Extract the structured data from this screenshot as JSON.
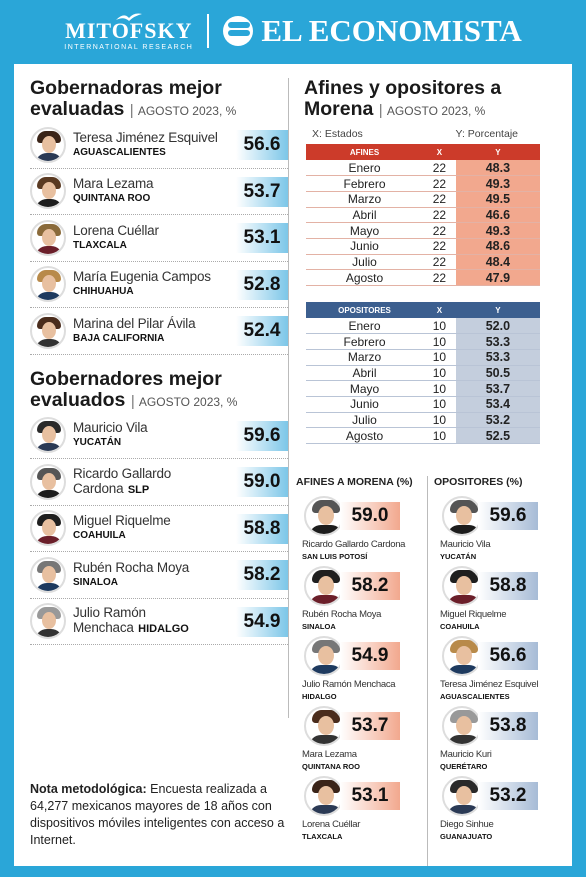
{
  "header": {
    "brand1": "MITOFSKY",
    "brand1_tag": "INTERNATIONAL RESEARCH",
    "brand2": "EL ECONOMISTA"
  },
  "gobernadoras": {
    "title": "Gobernadoras mejor evaluadas",
    "title_line1": "Gobernadoras mejor",
    "title_line2": "evaluadas",
    "subtitle": "AGOSTO 2023, %",
    "items": [
      {
        "name": "Teresa Jiménez Esquivel",
        "state": "AGUASCALIENTES",
        "score": "56.6"
      },
      {
        "name": "Mara Lezama",
        "state": "QUINTANA ROO",
        "score": "53.7"
      },
      {
        "name": "Lorena Cuéllar",
        "state": "TLAXCALA",
        "score": "53.1"
      },
      {
        "name": "María Eugenia Campos",
        "state": "CHIHUAHUA",
        "score": "52.8"
      },
      {
        "name": "Marina del Pilar Ávila",
        "state": "BAJA CALIFORNIA",
        "score": "52.4"
      }
    ]
  },
  "gobernadores": {
    "title_line1": "Gobernadores mejor",
    "title_line2": "evaluados",
    "subtitle": "AGOSTO 2023, %",
    "items": [
      {
        "name": "Mauricio Vila",
        "state": "YUCATÁN",
        "score": "59.6"
      },
      {
        "name": "Ricardo Gallardo",
        "name2": "Cardona",
        "state": "SLP",
        "score": "59.0"
      },
      {
        "name": "Miguel Riquelme",
        "state": "COAHUILA",
        "score": "58.8"
      },
      {
        "name": "Rubén Rocha Moya",
        "state": "SINALOA",
        "score": "58.2"
      },
      {
        "name": "Julio Ramón",
        "name2": "Menchaca",
        "state": "HIDALGO",
        "score": "54.9"
      }
    ]
  },
  "note": {
    "label": "Nota metodológica:",
    "text": "Encuesta realizada a 64,277 mexicanos mayores de 18 años con dispositivos móviles inteligentes con acceso a Internet."
  },
  "afines_section": {
    "title_line1": "Afines y opositores a",
    "title_line2": "Morena",
    "subtitle": "AGOSTO 2023, %",
    "x_label": "X: Estados",
    "y_label": "Y: Porcentaje"
  },
  "chart_data": {
    "type": "table",
    "afines": {
      "headers": [
        "AFINES",
        "X",
        "Y"
      ],
      "rows": [
        [
          "Enero",
          "22",
          "48.3"
        ],
        [
          "Febrero",
          "22",
          "49.3"
        ],
        [
          "Marzo",
          "22",
          "49.5"
        ],
        [
          "Abril",
          "22",
          "46.6"
        ],
        [
          "Mayo",
          "22",
          "49.3"
        ],
        [
          "Junio",
          "22",
          "48.6"
        ],
        [
          "Julio",
          "22",
          "48.4"
        ],
        [
          "Agosto",
          "22",
          "47.9"
        ]
      ]
    },
    "opositores": {
      "headers": [
        "OPOSITORES",
        "X",
        "Y"
      ],
      "rows": [
        [
          "Enero",
          "10",
          "52.0"
        ],
        [
          "Febrero",
          "10",
          "53.3"
        ],
        [
          "Marzo",
          "10",
          "53.3"
        ],
        [
          "Abril",
          "10",
          "50.5"
        ],
        [
          "Mayo",
          "10",
          "53.7"
        ],
        [
          "Junio",
          "10",
          "53.4"
        ],
        [
          "Julio",
          "10",
          "53.2"
        ],
        [
          "Agosto",
          "10",
          "52.5"
        ]
      ]
    }
  },
  "afines_ranking": {
    "title": "AFINES A MORENA (%)",
    "items": [
      {
        "name": "Ricardo Gallardo Cardona",
        "state": "SAN LUIS POTOSÍ",
        "score": "59.0"
      },
      {
        "name": "Rubén Rocha Moya",
        "state": "SINALOA",
        "score": "58.2"
      },
      {
        "name": "Julio Ramón Menchaca",
        "state": "HIDALGO",
        "score": "54.9"
      },
      {
        "name": "Mara Lezama",
        "state": "QUINTANA ROO",
        "score": "53.7"
      },
      {
        "name": "Lorena Cuéllar",
        "state": "TLAXCALA",
        "score": "53.1"
      }
    ]
  },
  "opositores_ranking": {
    "title": "OPOSITORES (%)",
    "items": [
      {
        "name": "Mauricio Vila",
        "state": "YUCATÁN",
        "score": "59.6"
      },
      {
        "name": "Miguel Riquelme",
        "state": "COAHUILA",
        "score": "58.8"
      },
      {
        "name": "Teresa Jiménez Esquivel",
        "state": "AGUASCALIENTES",
        "score": "56.6"
      },
      {
        "name": "Mauricio Kuri",
        "state": "QUERÉTARO",
        "score": "53.8"
      },
      {
        "name": "Diego Sinhue",
        "state": "GUANAJUATO",
        "score": "53.2"
      }
    ]
  },
  "colors": {
    "background": "#2aa6d8",
    "afines": "#cc3b2a",
    "opositores": "#3c5f8f"
  }
}
